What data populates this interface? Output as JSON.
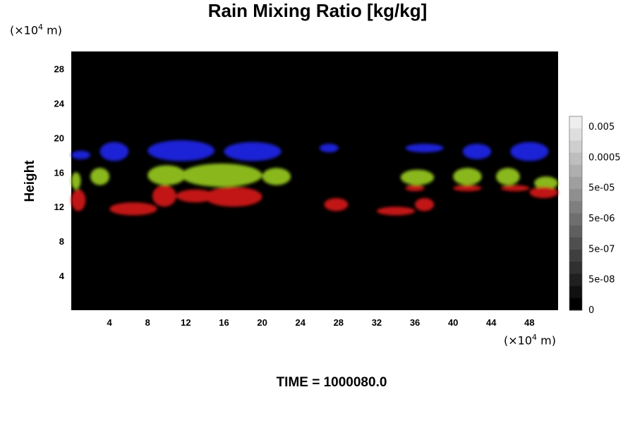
{
  "chart_data": {
    "type": "heatmap",
    "title": "Rain Mixing Ratio [kg/kg]",
    "ylabel": "Height",
    "xunit_prefix": "(×10",
    "xunit_exp": "4",
    "xunit_suffix": " m)",
    "yunit_prefix": "(×10",
    "yunit_exp": "4",
    "yunit_suffix": " m)",
    "xticks": [
      "4",
      "8",
      "12",
      "16",
      "20",
      "24",
      "28",
      "32",
      "36",
      "40",
      "44",
      "48"
    ],
    "yticks": [
      "4",
      "8",
      "12",
      "16",
      "20",
      "24",
      "28"
    ],
    "xlim": [
      0,
      51
    ],
    "ylim": [
      0,
      30
    ],
    "colorbar_labels": [
      "0.005",
      "0.0005",
      "5e-05",
      "5e-06",
      "5e-07",
      "5e-08",
      "0"
    ],
    "colors": {
      "background": "#000000",
      "blue_layer": "#1a22d6",
      "green_layer": "#8ab81a",
      "red_layer": "#c21212"
    },
    "regions": [
      {
        "layer": "blue",
        "x": [
          0,
          2
        ],
        "y": [
          17.5,
          18.5
        ]
      },
      {
        "layer": "blue",
        "x": [
          3,
          6
        ],
        "y": [
          17.3,
          19.5
        ]
      },
      {
        "layer": "blue",
        "x": [
          8,
          15
        ],
        "y": [
          17.3,
          19.7
        ]
      },
      {
        "layer": "blue",
        "x": [
          16,
          22
        ],
        "y": [
          17.3,
          19.5
        ]
      },
      {
        "layer": "blue",
        "x": [
          26,
          28
        ],
        "y": [
          18.3,
          19.3
        ]
      },
      {
        "layer": "blue",
        "x": [
          35,
          39
        ],
        "y": [
          18.3,
          19.3
        ]
      },
      {
        "layer": "blue",
        "x": [
          41,
          44
        ],
        "y": [
          17.5,
          19.3
        ]
      },
      {
        "layer": "blue",
        "x": [
          46,
          50
        ],
        "y": [
          17.3,
          19.5
        ]
      },
      {
        "layer": "green",
        "x": [
          0,
          1
        ],
        "y": [
          14,
          16
        ]
      },
      {
        "layer": "green",
        "x": [
          2,
          4
        ],
        "y": [
          14.5,
          16.5
        ]
      },
      {
        "layer": "green",
        "x": [
          8,
          12
        ],
        "y": [
          14.5,
          16.8
        ]
      },
      {
        "layer": "green",
        "x": [
          11.5,
          20
        ],
        "y": [
          14.3,
          17
        ]
      },
      {
        "layer": "green",
        "x": [
          20,
          23
        ],
        "y": [
          14.5,
          16.5
        ]
      },
      {
        "layer": "green",
        "x": [
          34.5,
          38
        ],
        "y": [
          14.5,
          16.3
        ]
      },
      {
        "layer": "green",
        "x": [
          40,
          43
        ],
        "y": [
          14.5,
          16.5
        ]
      },
      {
        "layer": "green",
        "x": [
          44.5,
          47
        ],
        "y": [
          14.5,
          16.5
        ]
      },
      {
        "layer": "green",
        "x": [
          48.5,
          51
        ],
        "y": [
          14,
          15.5
        ]
      },
      {
        "layer": "red",
        "x": [
          0,
          1.5
        ],
        "y": [
          11.5,
          14
        ]
      },
      {
        "layer": "red",
        "x": [
          4,
          9
        ],
        "y": [
          11,
          12.5
        ]
      },
      {
        "layer": "red",
        "x": [
          8.5,
          11
        ],
        "y": [
          12,
          14.5
        ]
      },
      {
        "layer": "red",
        "x": [
          11,
          15
        ],
        "y": [
          12.5,
          14
        ]
      },
      {
        "layer": "red",
        "x": [
          14,
          20
        ],
        "y": [
          12,
          14.3
        ]
      },
      {
        "layer": "red",
        "x": [
          26.5,
          29
        ],
        "y": [
          11.5,
          13
        ]
      },
      {
        "layer": "red",
        "x": [
          32,
          36
        ],
        "y": [
          11,
          12
        ]
      },
      {
        "layer": "red",
        "x": [
          36,
          38
        ],
        "y": [
          11.5,
          13
        ]
      },
      {
        "layer": "red",
        "x": [
          35,
          37
        ],
        "y": [
          13.8,
          14.5
        ]
      },
      {
        "layer": "red",
        "x": [
          40,
          43
        ],
        "y": [
          13.8,
          14.5
        ]
      },
      {
        "layer": "red",
        "x": [
          45,
          48
        ],
        "y": [
          13.8,
          14.5
        ]
      },
      {
        "layer": "red",
        "x": [
          48,
          51
        ],
        "y": [
          13,
          14.3
        ]
      }
    ]
  },
  "footer": {
    "time_label": "TIME = 1000080.0"
  }
}
